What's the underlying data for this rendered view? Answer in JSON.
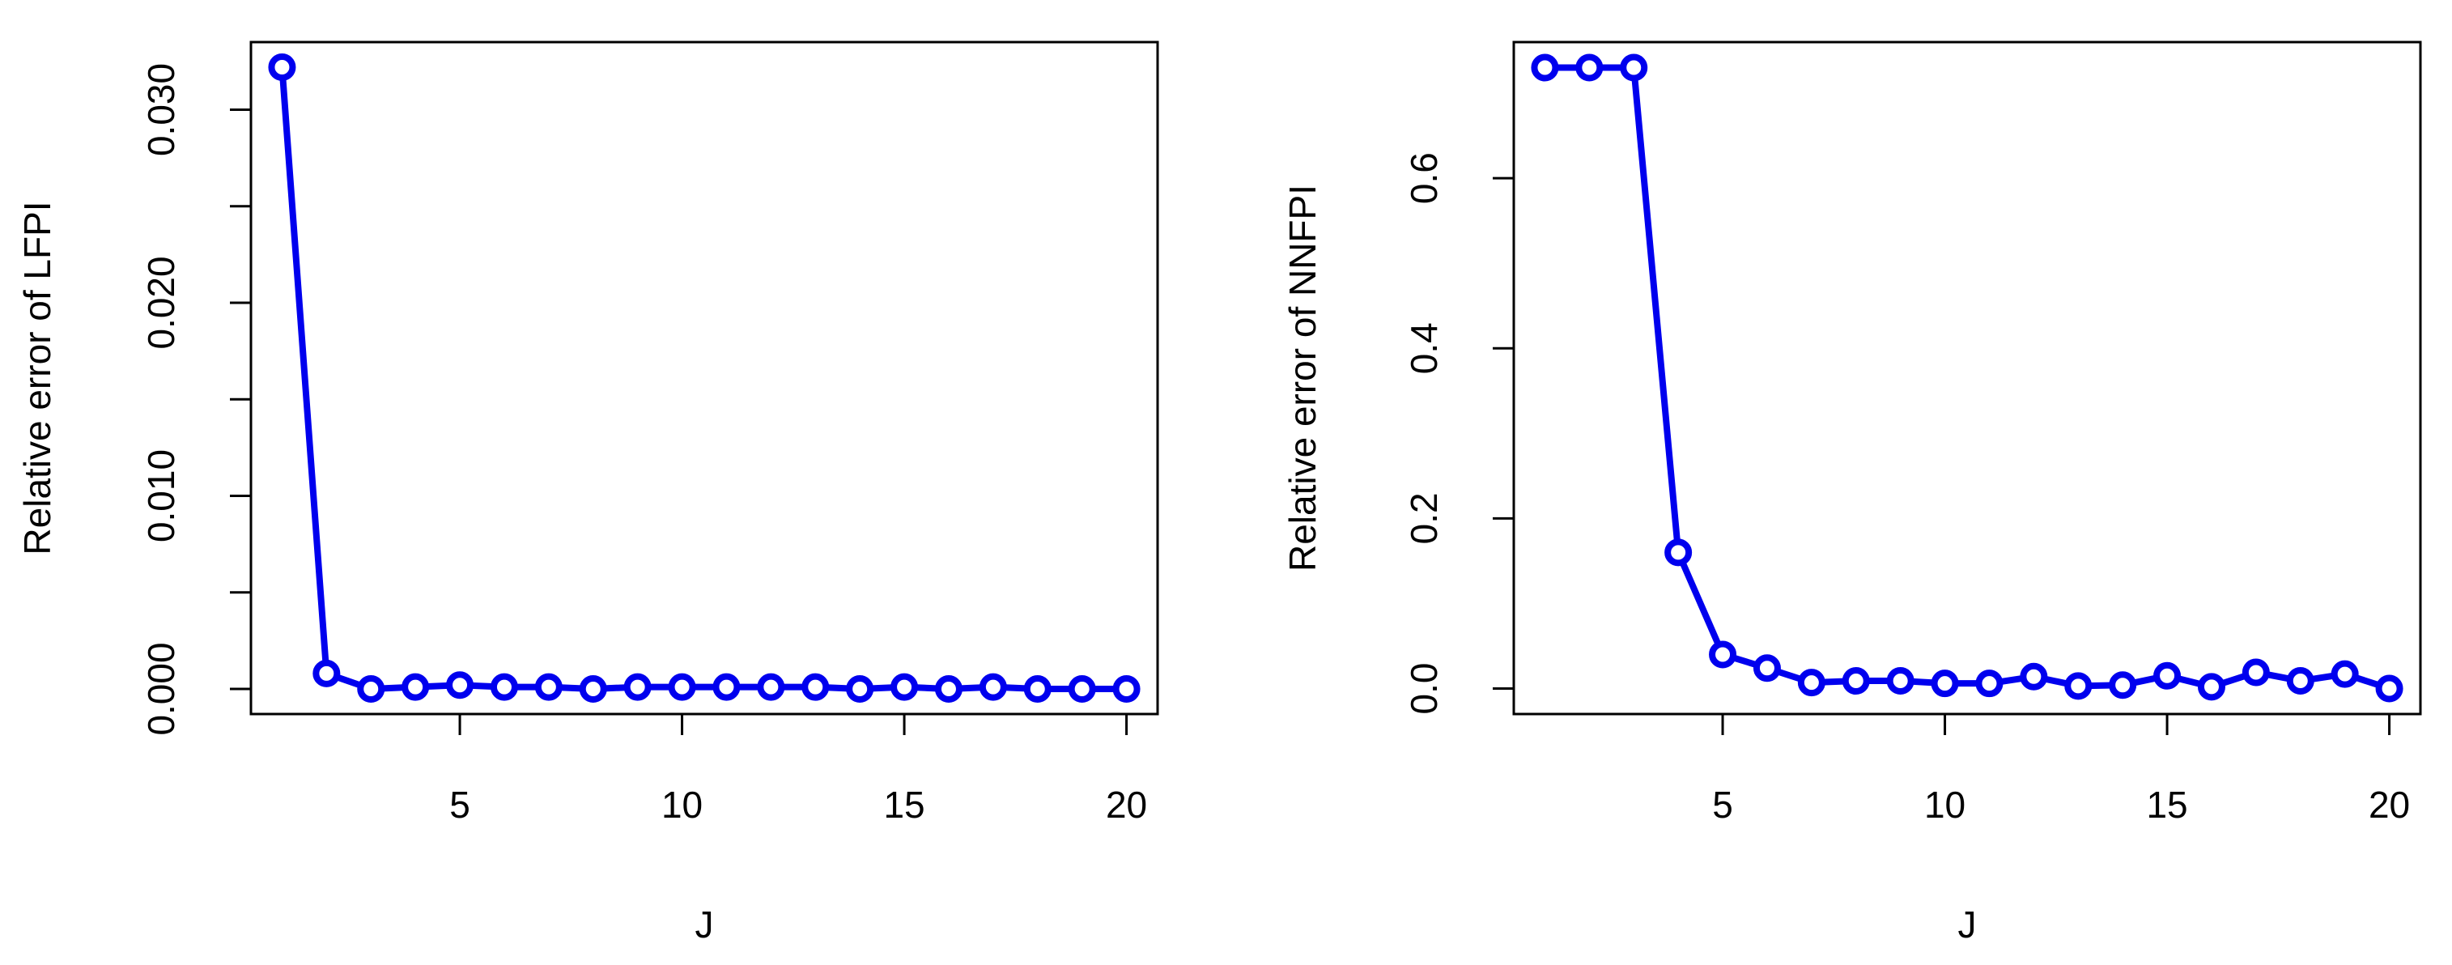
{
  "chart_data": [
    {
      "type": "line",
      "xlabel": "J",
      "ylabel": "Relative error of LFPI",
      "xlim": [
        0.3,
        20.7
      ],
      "ylim": [
        -0.0013,
        0.0335
      ],
      "xticks": [
        5,
        10,
        15,
        20
      ],
      "xtick_labels": [
        "5",
        "10",
        "15",
        "20"
      ],
      "yticks": [
        0.0,
        0.005,
        0.01,
        0.015,
        0.02,
        0.025,
        0.03
      ],
      "ytick_labels": [
        "0.000",
        "",
        "0.010",
        "",
        "0.020",
        "",
        "0.030"
      ],
      "grid": false,
      "color": "#0000ee",
      "marker": "open-circle",
      "series": [
        {
          "x": [
            1,
            2,
            3,
            4,
            5,
            6,
            7,
            8,
            9,
            10,
            11,
            12,
            13,
            14,
            15,
            16,
            17,
            18,
            19,
            20
          ],
          "y": [
            0.0322,
            0.0008,
            0.0,
            0.0001,
            0.0002,
            0.0001,
            0.0001,
            0.0,
            0.0001,
            0.0001,
            0.0001,
            0.0001,
            0.0001,
            0.0,
            0.0001,
            0.0,
            0.0001,
            0.0,
            0.0,
            0.0
          ]
        }
      ]
    },
    {
      "type": "line",
      "xlabel": "J",
      "ylabel": "Relative error of NNFPI",
      "xlim": [
        0.3,
        20.7
      ],
      "ylim": [
        -0.03,
        0.76
      ],
      "xticks": [
        5,
        10,
        15,
        20
      ],
      "xtick_labels": [
        "5",
        "10",
        "15",
        "20"
      ],
      "yticks": [
        0.0,
        0.2,
        0.4,
        0.6
      ],
      "ytick_labels": [
        "0.0",
        "0.2",
        "0.4",
        "0.6"
      ],
      "grid": false,
      "color": "#0000ee",
      "marker": "open-circle",
      "series": [
        {
          "x": [
            1,
            2,
            3,
            4,
            5,
            6,
            7,
            8,
            9,
            10,
            11,
            12,
            13,
            14,
            15,
            16,
            17,
            18,
            19,
            20
          ],
          "y": [
            0.73,
            0.73,
            0.73,
            0.16,
            0.04,
            0.024,
            0.007,
            0.009,
            0.009,
            0.006,
            0.006,
            0.014,
            0.003,
            0.004,
            0.015,
            0.002,
            0.019,
            0.009,
            0.017,
            0.0
          ]
        }
      ]
    }
  ]
}
